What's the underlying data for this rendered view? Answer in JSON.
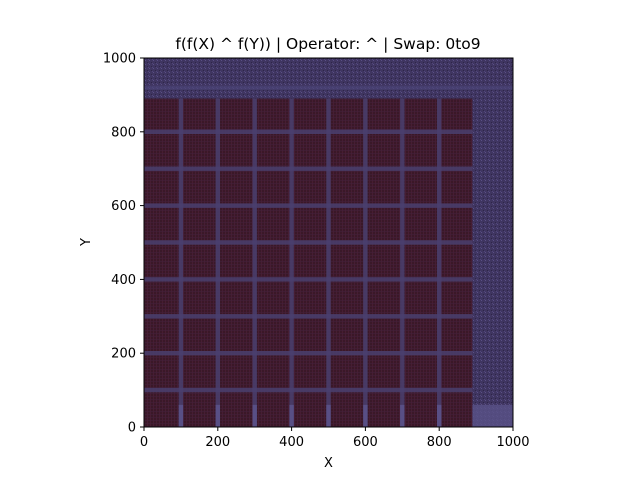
{
  "chart_data": {
    "type": "heatmap",
    "title": "f(f(X) ^ f(Y)) | Operator: ^ | Swap: 0to9",
    "xlabel": "X",
    "ylabel": "Y",
    "xlim": [
      0,
      1000
    ],
    "ylim": [
      0,
      1000
    ],
    "x_ticks": [
      0,
      200,
      400,
      600,
      800,
      1000
    ],
    "y_ticks": [
      0,
      200,
      400,
      600,
      800,
      1000
    ],
    "grid": false,
    "colors": {
      "cell_dark": "#3a1828",
      "cell_texture": "#4a1f35",
      "band": "#4a3f6e",
      "band_light": "#5a5288",
      "right_strip": "#3f3560",
      "top_strip": "#4c4478"
    },
    "structure": {
      "grid_period": 100,
      "band_width": 12,
      "cell_region_x_max": 890,
      "cell_region_y_max": 890
    }
  }
}
